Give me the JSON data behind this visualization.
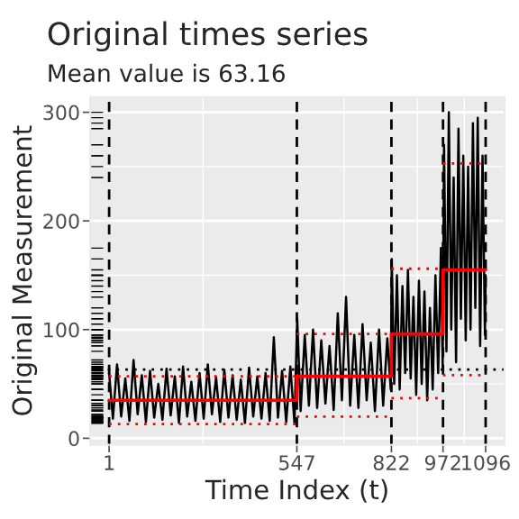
{
  "chart_data": {
    "type": "line",
    "title": "Original times series",
    "subtitle": "Mean value is 63.16",
    "xlabel": "Time Index (t)",
    "ylabel": "Original Measurement",
    "xlim": [
      -53.75,
      1150.75
    ],
    "ylim": [
      -6,
      314
    ],
    "xticks": [
      1,
      547,
      822,
      972,
      1096
    ],
    "yticks": [
      0,
      100,
      200,
      300
    ],
    "grid": true,
    "marker": "none",
    "series": [
      {
        "type": "line",
        "color": "#000000",
        "line_style": "solid",
        "x": [
          1,
          12,
          24,
          36,
          48,
          60,
          72,
          84,
          96,
          108,
          120,
          132,
          144,
          156,
          168,
          180,
          192,
          204,
          216,
          228,
          240,
          252,
          264,
          276,
          288,
          300,
          312,
          324,
          336,
          348,
          360,
          372,
          384,
          396,
          408,
          420,
          432,
          444,
          456,
          468,
          480,
          492,
          504,
          516,
          528,
          540,
          548,
          558,
          570,
          582,
          594,
          606,
          618,
          630,
          642,
          654,
          666,
          678,
          690,
          702,
          714,
          726,
          738,
          750,
          762,
          774,
          786,
          798,
          810,
          820,
          823,
          830,
          838,
          846,
          854,
          862,
          870,
          878,
          886,
          894,
          902,
          910,
          918,
          926,
          934,
          942,
          950,
          958,
          966,
          971,
          975,
          982,
          989,
          996,
          1003,
          1010,
          1017,
          1024,
          1031,
          1038,
          1045,
          1052,
          1059,
          1066,
          1073,
          1080,
          1087,
          1094,
          1096
        ],
        "values": [
          60,
          18,
          68,
          20,
          55,
          16,
          72,
          22,
          58,
          15,
          62,
          19,
          50,
          17,
          64,
          21,
          57,
          14,
          66,
          20,
          52,
          16,
          60,
          18,
          68,
          22,
          56,
          15,
          63,
          19,
          58,
          17,
          54,
          14,
          65,
          20,
          57,
          18,
          60,
          16,
          93,
          19,
          62,
          15,
          66,
          14,
          110,
          25,
          95,
          30,
          100,
          28,
          90,
          32,
          85,
          26,
          115,
          35,
          130,
          30,
          95,
          28,
          105,
          35,
          88,
          25,
          100,
          30,
          92,
          45,
          165,
          50,
          150,
          45,
          140,
          60,
          155,
          55,
          130,
          40,
          145,
          50,
          135,
          35,
          120,
          45,
          150,
          60,
          175,
          65,
          270,
          80,
          300,
          100,
          240,
          70,
          285,
          110,
          260,
          90,
          250,
          100,
          290,
          120,
          295,
          85,
          260,
          95,
          150
        ]
      },
      {
        "type": "step",
        "color": "#ff0000",
        "line_style": "solid",
        "x": [
          1,
          547,
          822,
          972,
          1096
        ],
        "values": [
          35,
          57,
          96,
          155,
          155
        ]
      },
      {
        "type": "line",
        "color": "#ff0000",
        "line_style": "dotted",
        "x": [
          1,
          547
        ],
        "values": [
          57,
          57
        ]
      },
      {
        "type": "line",
        "color": "#ff0000",
        "line_style": "dotted",
        "x": [
          547,
          822
        ],
        "values": [
          96,
          96
        ]
      },
      {
        "type": "line",
        "color": "#ff0000",
        "line_style": "dotted",
        "x": [
          822,
          972
        ],
        "values": [
          156,
          156
        ]
      },
      {
        "type": "line",
        "color": "#ff0000",
        "line_style": "dotted",
        "x": [
          972,
          1096
        ],
        "values": [
          253,
          253
        ]
      },
      {
        "type": "line",
        "color": "#ff0000",
        "line_style": "dotted",
        "x": [
          1,
          547
        ],
        "values": [
          13,
          13
        ]
      },
      {
        "type": "line",
        "color": "#ff0000",
        "line_style": "dotted",
        "x": [
          547,
          822
        ],
        "values": [
          20,
          20
        ]
      },
      {
        "type": "line",
        "color": "#ff0000",
        "line_style": "dotted",
        "x": [
          822,
          972
        ],
        "values": [
          37,
          37
        ]
      },
      {
        "type": "line",
        "color": "#ff0000",
        "line_style": "dotted",
        "x": [
          972,
          1096
        ],
        "values": [
          58,
          58
        ]
      }
    ],
    "ref_lines": [
      {
        "axis": "y",
        "value": 63.16,
        "color": "#000000",
        "line_style": "dotted"
      },
      {
        "axis": "x",
        "value": 1,
        "color": "#000000",
        "line_style": "dashed"
      },
      {
        "axis": "x",
        "value": 547,
        "color": "#000000",
        "line_style": "dashed"
      },
      {
        "axis": "x",
        "value": 822,
        "color": "#000000",
        "line_style": "dashed"
      },
      {
        "axis": "x",
        "value": 972,
        "color": "#000000",
        "line_style": "dashed"
      },
      {
        "axis": "x",
        "value": 1096,
        "color": "#000000",
        "line_style": "dashed"
      }
    ]
  }
}
